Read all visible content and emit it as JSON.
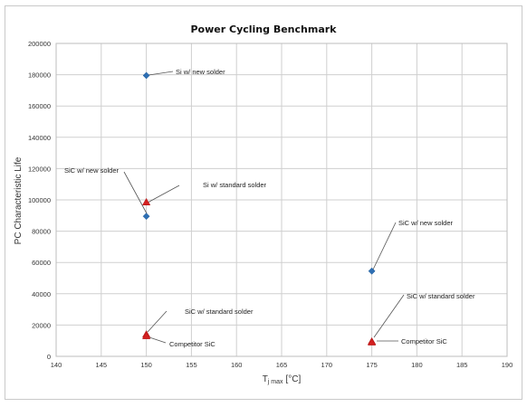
{
  "chart_data": {
    "type": "scatter",
    "title": "Power Cycling Benchmark",
    "xlabel_main": "T",
    "xlabel_sub": "j max",
    "xlabel_unit": "[°C]",
    "ylabel": "PC Characteristic Life",
    "xlim": [
      140,
      190
    ],
    "ylim": [
      0,
      200000
    ],
    "xticks": [
      140,
      145,
      150,
      155,
      160,
      165,
      170,
      175,
      180,
      185,
      190
    ],
    "yticks": [
      0,
      20000,
      40000,
      60000,
      80000,
      100000,
      120000,
      140000,
      160000,
      180000,
      200000
    ],
    "grid": true,
    "series": [
      {
        "marker": "diamond",
        "color": "#2e6fb3",
        "points": [
          {
            "x": 150,
            "y": 179500,
            "label": "Si w/ new solder"
          },
          {
            "x": 150,
            "y": 89500,
            "label": "Si w/ standard solder"
          },
          {
            "x": 175,
            "y": 54500,
            "label": "SiC w/ new solder"
          }
        ]
      },
      {
        "marker": "triangle",
        "color": "#d42020",
        "points": [
          {
            "x": 150,
            "y": 98500,
            "label": "SiC w/ new solder"
          },
          {
            "x": 150,
            "y": 14000,
            "label": "SiC w/ standard solder"
          },
          {
            "x": 150,
            "y": 13000,
            "label": "Competitor SiC"
          },
          {
            "x": 175,
            "y": 9500,
            "label": "SiC w/ standard solder"
          },
          {
            "x": 175,
            "y": 9000,
            "label": "Competitor SiC"
          }
        ]
      }
    ]
  }
}
